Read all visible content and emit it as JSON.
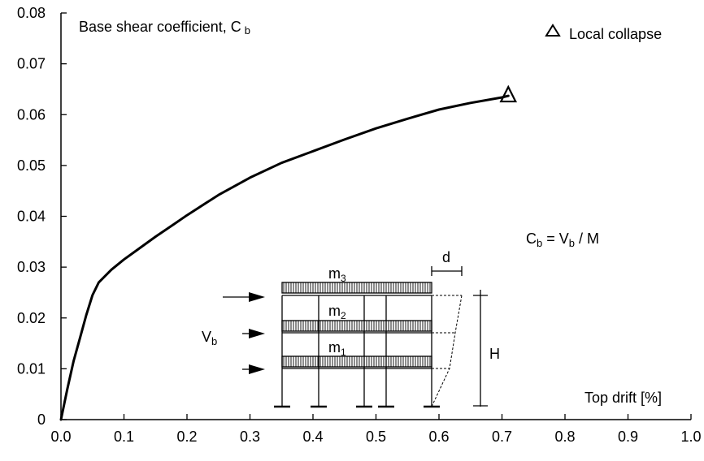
{
  "chart_data": {
    "type": "line",
    "title": "",
    "xlabel": "Top drift [%]",
    "ylabel": "Base shear coefficient, C b",
    "xlim": [
      0,
      1.0
    ],
    "ylim": [
      0,
      0.08
    ],
    "xticks": [
      "0.0",
      "0.1",
      "0.2",
      "0.3",
      "0.4",
      "0.5",
      "0.6",
      "0.7",
      "0.8",
      "0.9",
      "1.0"
    ],
    "yticks": [
      "0",
      "0.01",
      "0.02",
      "0.03",
      "0.04",
      "0.05",
      "0.06",
      "0.07",
      "0.08"
    ],
    "grid": false,
    "legend": {
      "marker": "triangle",
      "label": "Local collapse",
      "position": "top-right"
    },
    "series": [
      {
        "x": [
          0.0,
          0.005,
          0.01,
          0.02,
          0.03,
          0.04,
          0.05,
          0.06,
          0.08,
          0.1,
          0.12,
          0.15,
          0.18,
          0.2,
          0.25,
          0.3,
          0.35,
          0.4,
          0.45,
          0.5,
          0.55,
          0.6,
          0.65,
          0.7,
          0.71
        ],
        "values": [
          0.0,
          0.003,
          0.006,
          0.0115,
          0.016,
          0.0205,
          0.0245,
          0.027,
          0.0295,
          0.0315,
          0.0333,
          0.036,
          0.0385,
          0.0402,
          0.0442,
          0.0476,
          0.0505,
          0.0528,
          0.0551,
          0.0573,
          0.0592,
          0.061,
          0.0623,
          0.0634,
          0.0637
        ]
      }
    ],
    "markers": [
      {
        "x": 0.71,
        "y": 0.0637,
        "shape": "triangle",
        "label": "Local collapse"
      }
    ]
  },
  "annotations": {
    "ylabel_main": "Base shear coefficient, C",
    "ylabel_sub": "b",
    "legend_label": "Local collapse",
    "xlabel": "Top drift [%]",
    "formula": {
      "c": "C",
      "c_sub": "b",
      "eq": " = V",
      "v_sub": "b",
      "rest": " / M"
    },
    "inset": {
      "m3": "m",
      "m3_sub": "3",
      "m2": "m",
      "m2_sub": "2",
      "m1": "m",
      "m1_sub": "1",
      "d": "d",
      "H": "H",
      "Vb": "V",
      "Vb_sub": "b"
    }
  }
}
